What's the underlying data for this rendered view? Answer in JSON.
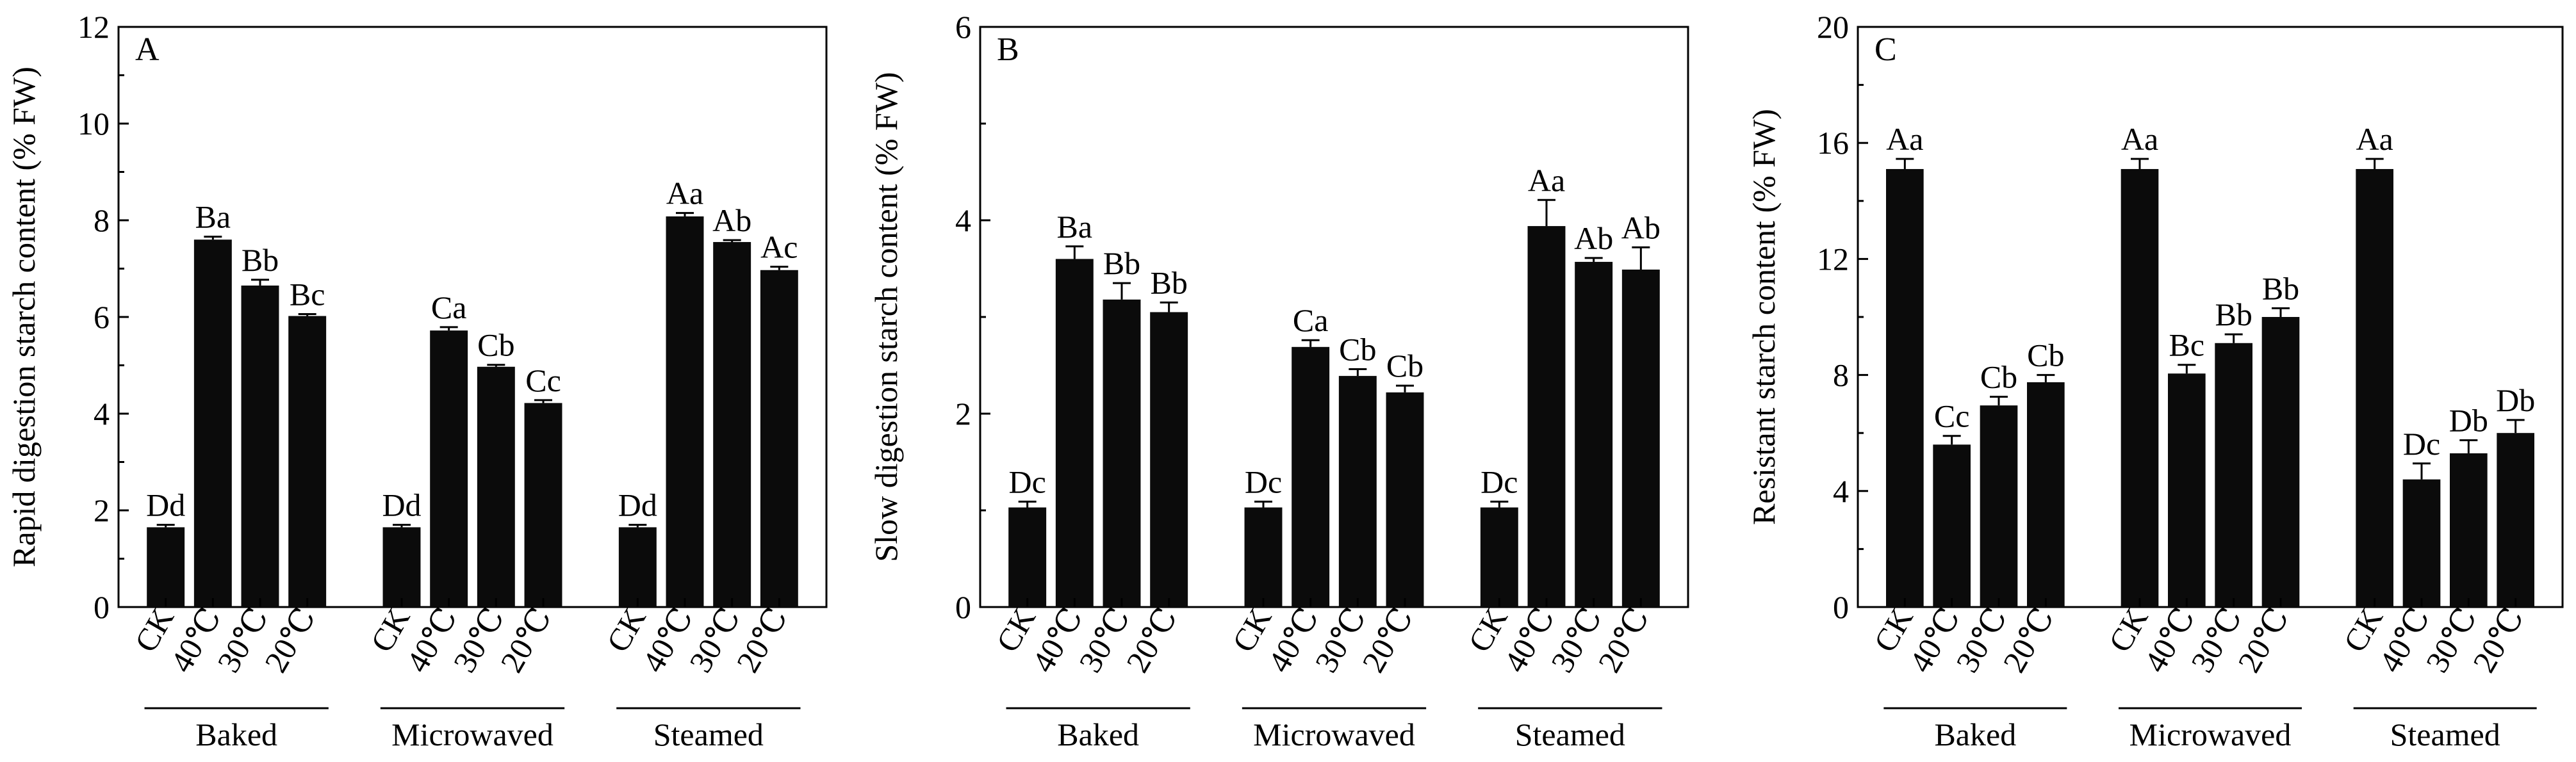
{
  "chart_data": [
    {
      "type": "bar",
      "panel_label": "A",
      "ylabel": "Rapid digestion starch content (% FW)",
      "ylim": [
        0,
        12
      ],
      "yticks": [
        0,
        2,
        4,
        6,
        8,
        10,
        12
      ],
      "groups": [
        {
          "name": "Baked",
          "categories": [
            "CK",
            "40℃",
            "30℃",
            "20℃"
          ],
          "values": [
            1.65,
            7.6,
            6.65,
            6.02
          ],
          "errors": [
            0.05,
            0.06,
            0.12,
            0.04
          ],
          "labels": [
            "Dd",
            "Ba",
            "Bb",
            "Bc"
          ]
        },
        {
          "name": "Microwaved",
          "categories": [
            "CK",
            "40℃",
            "30℃",
            "20℃"
          ],
          "values": [
            1.65,
            5.72,
            4.97,
            4.22
          ],
          "errors": [
            0.05,
            0.07,
            0.04,
            0.06
          ],
          "labels": [
            "Dd",
            "Ca",
            "Cb",
            "Cc"
          ]
        },
        {
          "name": "Steamed",
          "categories": [
            "CK",
            "40℃",
            "30℃",
            "20℃"
          ],
          "values": [
            1.65,
            8.08,
            7.55,
            6.97
          ],
          "errors": [
            0.05,
            0.07,
            0.04,
            0.07
          ],
          "labels": [
            "Dd",
            "Aa",
            "Ab",
            "Ac"
          ]
        }
      ]
    },
    {
      "type": "bar",
      "panel_label": "B",
      "ylabel": "Slow digestion starch content (% FW)",
      "ylim": [
        0,
        6
      ],
      "yticks": [
        0,
        2,
        4,
        6
      ],
      "groups": [
        {
          "name": "Baked",
          "categories": [
            "CK",
            "40℃",
            "30℃",
            "20℃"
          ],
          "values": [
            1.03,
            3.6,
            3.18,
            3.05
          ],
          "errors": [
            0.06,
            0.13,
            0.17,
            0.1
          ],
          "labels": [
            "Dc",
            "Ba",
            "Bb",
            "Bb"
          ]
        },
        {
          "name": "Microwaved",
          "categories": [
            "CK",
            "40℃",
            "30℃",
            "20℃"
          ],
          "values": [
            1.03,
            2.69,
            2.39,
            2.22
          ],
          "errors": [
            0.06,
            0.07,
            0.07,
            0.07
          ],
          "labels": [
            "Dc",
            "Ca",
            "Cb",
            "Cb"
          ]
        },
        {
          "name": "Steamed",
          "categories": [
            "CK",
            "40℃",
            "30℃",
            "20℃"
          ],
          "values": [
            1.03,
            3.94,
            3.57,
            3.49
          ],
          "errors": [
            0.06,
            0.27,
            0.04,
            0.23
          ],
          "labels": [
            "Dc",
            "Aa",
            "Ab",
            "Ab"
          ]
        }
      ]
    },
    {
      "type": "bar",
      "panel_label": "C",
      "ylabel": "Resistant starch content (% FW)",
      "ylim": [
        0,
        20
      ],
      "yticks": [
        0,
        4,
        8,
        12,
        16,
        20
      ],
      "groups": [
        {
          "name": "Baked",
          "categories": [
            "CK",
            "40℃",
            "30℃",
            "20℃"
          ],
          "values": [
            15.1,
            5.6,
            6.95,
            7.75
          ],
          "errors": [
            0.35,
            0.3,
            0.3,
            0.25
          ],
          "labels": [
            "Aa",
            "Cc",
            "Cb",
            "Cb"
          ]
        },
        {
          "name": "Microwaved",
          "categories": [
            "CK",
            "40℃",
            "30℃",
            "20℃"
          ],
          "values": [
            15.1,
            8.05,
            9.1,
            10.0
          ],
          "errors": [
            0.35,
            0.3,
            0.3,
            0.3
          ],
          "labels": [
            "Aa",
            "Bc",
            "Bb",
            "Bb"
          ]
        },
        {
          "name": "Steamed",
          "categories": [
            "CK",
            "40℃",
            "30℃",
            "20℃"
          ],
          "values": [
            15.1,
            4.4,
            5.3,
            6.0
          ],
          "errors": [
            0.35,
            0.55,
            0.45,
            0.45
          ],
          "labels": [
            "Aa",
            "Dc",
            "Db",
            "Db"
          ]
        }
      ]
    }
  ]
}
